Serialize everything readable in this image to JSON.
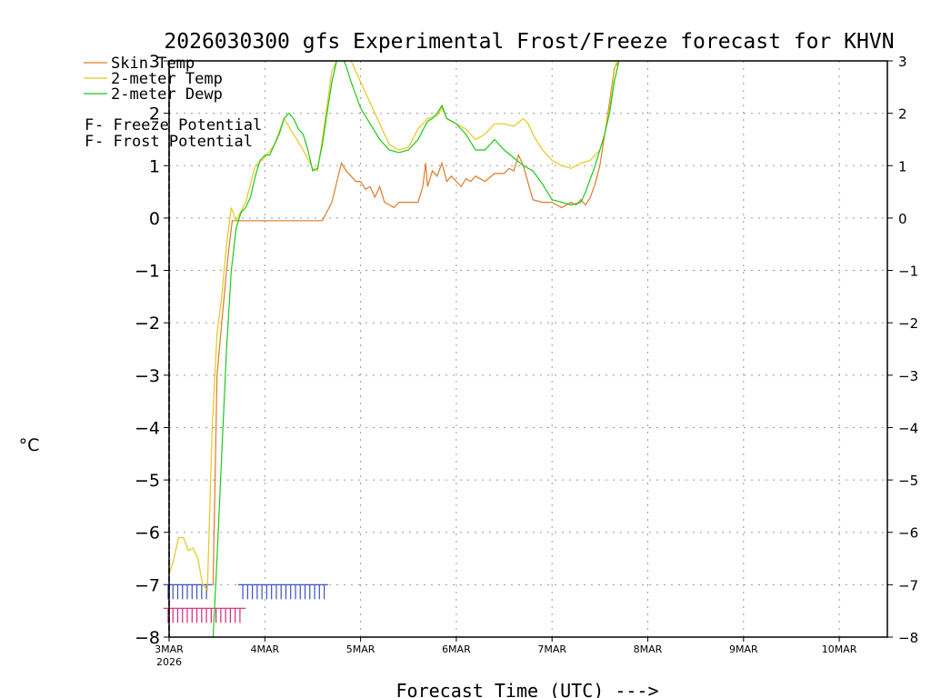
{
  "colors": {
    "skin": "#e07a28",
    "temp2m": "#e6c81e",
    "dewp2m": "#1ec81e",
    "freeze": "#d8267a",
    "frost": "#3c50c8",
    "grid": "#999999",
    "axis": "#000000"
  },
  "chart_data": {
    "type": "line",
    "title": "2026030300 gfs Experimental Frost/Freeze forecast for KHVN",
    "ylabel": "°C",
    "xlabel": "Forecast Time (UTC) --->",
    "ylim": [
      -8,
      3
    ],
    "xlim": [
      0,
      7.6
    ],
    "yticks": [
      3,
      2,
      1,
      0,
      -1,
      -2,
      -3,
      -4,
      -5,
      -6,
      -7,
      -8
    ],
    "ytick_labels": [
      "3",
      "2",
      "1",
      "0",
      "−1",
      "−2",
      "−3",
      "−4",
      "−5",
      "−6",
      "−7",
      "−8"
    ],
    "xticks": [
      {
        "day": 0,
        "label": "3MAR",
        "sub": "2026"
      },
      {
        "day": 1,
        "label": "4MAR",
        "sub": ""
      },
      {
        "day": 2,
        "label": "5MAR",
        "sub": ""
      },
      {
        "day": 3,
        "label": "6MAR",
        "sub": ""
      },
      {
        "day": 4,
        "label": "7MAR",
        "sub": ""
      },
      {
        "day": 5,
        "label": "8MAR",
        "sub": ""
      },
      {
        "day": 6,
        "label": "9MAR",
        "sub": ""
      },
      {
        "day": 7,
        "label": "10MAR",
        "sub": ""
      }
    ],
    "legend": [
      {
        "label": "Skin Temp",
        "series": "skin"
      },
      {
        "label": "2-meter Temp",
        "series": "temp2m"
      },
      {
        "label": "2-meter Dewp",
        "series": "dewp2m"
      }
    ],
    "potential_legend": [
      {
        "letter": "F",
        "label": " - Freeze Potential",
        "series": "freeze"
      },
      {
        "letter": "F",
        "label": " - Frost Potential",
        "series": "frost"
      }
    ],
    "series": [
      {
        "name": "Skin Temp",
        "key": "skin",
        "x": [
          0.46,
          0.5,
          0.55,
          0.6,
          0.63,
          0.66,
          0.72,
          0.8,
          1.0,
          1.2,
          1.4,
          1.6,
          1.7,
          1.8,
          1.85,
          1.9,
          1.95,
          2.0,
          2.05,
          2.1,
          2.15,
          2.2,
          2.25,
          2.3,
          2.35,
          2.4,
          2.5,
          2.6,
          2.65,
          2.68,
          2.7,
          2.75,
          2.8,
          2.85,
          2.9,
          2.95,
          3.0,
          3.05,
          3.1,
          3.15,
          3.2,
          3.3,
          3.4,
          3.5,
          3.55,
          3.6,
          3.65,
          3.7,
          3.8,
          3.9,
          4.0,
          4.1,
          4.2,
          4.25,
          4.3,
          4.35,
          4.4,
          4.45,
          4.5,
          4.55,
          4.6,
          4.65,
          4.7,
          4.75
        ],
        "y": [
          -7.0,
          -3.0,
          -2.0,
          -1.0,
          -0.5,
          -0.05,
          -0.05,
          -0.05,
          -0.05,
          -0.05,
          -0.05,
          -0.05,
          0.3,
          1.05,
          0.9,
          0.8,
          0.7,
          0.7,
          0.55,
          0.6,
          0.4,
          0.6,
          0.3,
          0.25,
          0.2,
          0.3,
          0.3,
          0.3,
          0.6,
          1.05,
          0.6,
          0.9,
          0.8,
          1.05,
          0.7,
          0.8,
          0.7,
          0.6,
          0.75,
          0.7,
          0.8,
          0.7,
          0.85,
          0.85,
          0.95,
          0.9,
          1.2,
          1.0,
          0.35,
          0.3,
          0.3,
          0.2,
          0.3,
          0.25,
          0.35,
          0.25,
          0.4,
          0.65,
          1.0,
          1.6,
          2.2,
          2.85,
          3.0,
          3.2
        ]
      },
      {
        "name": "2-meter Temp",
        "key": "temp2m",
        "x": [
          0.0,
          0.05,
          0.1,
          0.15,
          0.2,
          0.25,
          0.3,
          0.35,
          0.4,
          0.45,
          0.5,
          0.55,
          0.6,
          0.65,
          0.7,
          0.8,
          0.9,
          1.0,
          1.1,
          1.2,
          1.3,
          1.4,
          1.5,
          1.55,
          1.6,
          1.7,
          1.8,
          1.9,
          2.0,
          2.1,
          2.2,
          2.3,
          2.4,
          2.5,
          2.6,
          2.7,
          2.8,
          2.85,
          2.9,
          3.0,
          3.1,
          3.2,
          3.3,
          3.4,
          3.5,
          3.6,
          3.7,
          3.75,
          3.8,
          3.9,
          4.0,
          4.1,
          4.2,
          4.3,
          4.4,
          4.5,
          4.55,
          4.6,
          4.65,
          4.7
        ],
        "y": [
          -6.8,
          -6.5,
          -6.1,
          -6.1,
          -6.35,
          -6.3,
          -6.5,
          -7.0,
          -7.1,
          -4.0,
          -2.2,
          -1.5,
          -0.5,
          0.2,
          -0.05,
          0.3,
          1.0,
          1.15,
          1.4,
          1.9,
          1.6,
          1.3,
          0.95,
          0.9,
          1.5,
          2.8,
          3.2,
          3.0,
          2.6,
          2.2,
          1.8,
          1.4,
          1.3,
          1.35,
          1.7,
          1.9,
          1.95,
          2.1,
          1.9,
          1.8,
          1.7,
          1.5,
          1.6,
          1.8,
          1.8,
          1.75,
          1.9,
          1.8,
          1.6,
          1.3,
          1.1,
          1.0,
          0.95,
          1.05,
          1.1,
          1.3,
          1.6,
          2.1,
          2.8,
          3.2
        ]
      },
      {
        "name": "2-meter Dewp",
        "key": "dewp2m",
        "x": [
          0.46,
          0.5,
          0.55,
          0.6,
          0.65,
          0.7,
          0.75,
          0.8,
          0.85,
          0.9,
          0.95,
          1.0,
          1.05,
          1.1,
          1.15,
          1.2,
          1.25,
          1.3,
          1.35,
          1.4,
          1.45,
          1.5,
          1.55,
          1.6,
          1.65,
          1.7,
          1.75,
          1.8,
          1.85,
          1.9,
          2.0,
          2.1,
          2.2,
          2.3,
          2.4,
          2.5,
          2.6,
          2.7,
          2.75,
          2.8,
          2.85,
          2.9,
          3.0,
          3.1,
          3.2,
          3.3,
          3.4,
          3.5,
          3.6,
          3.7,
          3.8,
          3.9,
          4.0,
          4.1,
          4.2,
          4.3,
          4.35,
          4.4,
          4.45,
          4.5,
          4.55,
          4.6,
          4.65,
          4.7
        ],
        "y": [
          -8.0,
          -6.5,
          -4.5,
          -2.5,
          -1.0,
          -0.2,
          0.1,
          0.2,
          0.4,
          0.8,
          1.1,
          1.2,
          1.2,
          1.4,
          1.6,
          1.9,
          2.0,
          1.9,
          1.7,
          1.6,
          1.3,
          0.9,
          0.95,
          1.4,
          2.0,
          2.6,
          3.0,
          3.1,
          2.9,
          2.6,
          2.1,
          1.8,
          1.5,
          1.3,
          1.25,
          1.3,
          1.5,
          1.85,
          1.9,
          2.0,
          2.15,
          1.9,
          1.8,
          1.6,
          1.3,
          1.3,
          1.5,
          1.3,
          1.15,
          1.0,
          0.9,
          0.65,
          0.35,
          0.3,
          0.25,
          0.3,
          0.5,
          0.75,
          1.0,
          1.3,
          1.6,
          2.0,
          2.6,
          3.0
        ]
      }
    ],
    "freeze_marks": [
      {
        "x_start": -0.06,
        "x_end": 0.8,
        "y": -7.45,
        "dx": 0.05
      }
    ],
    "frost_marks": [
      {
        "x_start": -0.06,
        "x_end": 0.45,
        "y": -7.0,
        "dx": 0.05
      },
      {
        "x_start": 0.72,
        "x_end": 1.66,
        "y": -7.0,
        "dx": 0.05
      }
    ]
  }
}
